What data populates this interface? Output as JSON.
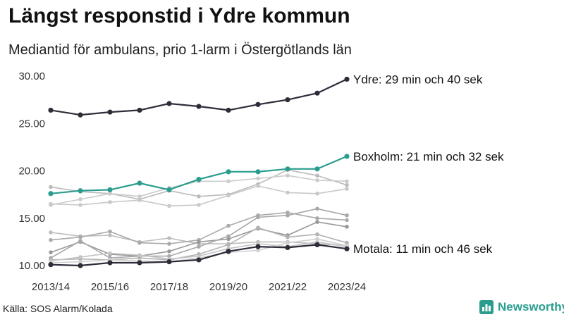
{
  "title": "Längst responstid i Ydre kommun",
  "subtitle": "Mediantid för ambulans, prio 1-larm i Östergötlands län",
  "source": "Källa: SOS Alarm/Kolada",
  "brand": {
    "name": "Newsworthy",
    "logo_icon": "newsworthy-logo-icon",
    "color": "#2a9d8f"
  },
  "chart_data": {
    "type": "line",
    "x": [
      "2013/14",
      "2014/15",
      "2015/16",
      "2016/17",
      "2017/18",
      "2018/19",
      "2019/20",
      "2020/21",
      "2021/22",
      "2022/23",
      "2023/24"
    ],
    "x_tick_labels": [
      "2013/14",
      "2015/16",
      "2017/18",
      "2019/20",
      "2021/22",
      "2023/24"
    ],
    "ylim": [
      10,
      30
    ],
    "y_ticks": [
      "10.00",
      "15.00",
      "20.00",
      "25.00",
      "30.00"
    ],
    "grid": false,
    "series": [
      {
        "values": [
          18.3,
          17.8,
          17.6,
          17.0,
          17.9,
          17.3,
          17.5,
          18.6,
          20.1,
          19.5,
          18.5
        ],
        "color": "#bbbbbb"
      },
      {
        "values": [
          16.4,
          17.0,
          17.6,
          17.3,
          18.2,
          18.9,
          18.9,
          19.2,
          19.5,
          19.0,
          18.9
        ],
        "color": "#cccccc"
      },
      {
        "values": [
          16.5,
          16.4,
          16.7,
          16.9,
          16.3,
          16.4,
          17.4,
          18.4,
          17.7,
          17.6,
          18.1
        ],
        "color": "#c9c9c9"
      },
      {
        "values": [
          13.5,
          13.1,
          13.2,
          12.5,
          12.9,
          12.3,
          12.3,
          12.5,
          12.5,
          12.3,
          12.1
        ],
        "color": "#bdbdbd"
      },
      {
        "values": [
          12.7,
          13.0,
          13.6,
          12.4,
          12.3,
          12.7,
          14.2,
          15.3,
          15.6,
          15.0,
          14.8
        ],
        "color": "#aaaaaa"
      },
      {
        "values": [
          11.4,
          12.5,
          11.2,
          11.0,
          11.5,
          12.5,
          12.8,
          13.9,
          13.2,
          14.6,
          14.1
        ],
        "color": "#999999"
      },
      {
        "values": [
          10.8,
          12.6,
          10.8,
          11.0,
          11.0,
          12.0,
          13.1,
          15.1,
          15.3,
          16.0,
          15.3
        ],
        "color": "#a8a8a8"
      },
      {
        "values": [
          10.6,
          10.7,
          10.6,
          10.8,
          10.6,
          11.2,
          12.2,
          14.0,
          13.0,
          13.3,
          12.4
        ],
        "color": "#b2b2b2"
      },
      {
        "values": [
          10.5,
          10.9,
          11.3,
          11.1,
          10.7,
          11.0,
          11.8,
          12.3,
          12.0,
          12.5,
          12.0
        ],
        "color": "#c4c4c4"
      },
      {
        "values": [
          10.3,
          10.4,
          10.6,
          10.5,
          10.4,
          10.8,
          11.4,
          11.6,
          12.4,
          12.8,
          12.1
        ],
        "color": "#d0d0d0"
      },
      {
        "values": [
          26.4,
          25.9,
          26.2,
          26.4,
          27.1,
          26.8,
          26.4,
          27.0,
          27.5,
          28.2,
          29.67
        ],
        "color": "#2d2d3a",
        "label": "Ydre: 29 min och 40 sek"
      },
      {
        "values": [
          17.6,
          17.9,
          18.0,
          18.7,
          18.0,
          19.1,
          19.9,
          19.9,
          20.2,
          20.2,
          21.53
        ],
        "color": "#2a9d8f",
        "label": "Boxholm: 21 min och 32 sek"
      },
      {
        "values": [
          10.1,
          10.0,
          10.3,
          10.3,
          10.4,
          10.6,
          11.5,
          12.0,
          11.9,
          12.2,
          11.77
        ],
        "color": "#2d2d3a",
        "label": "Motala: 11 min och 46 sek"
      }
    ]
  }
}
